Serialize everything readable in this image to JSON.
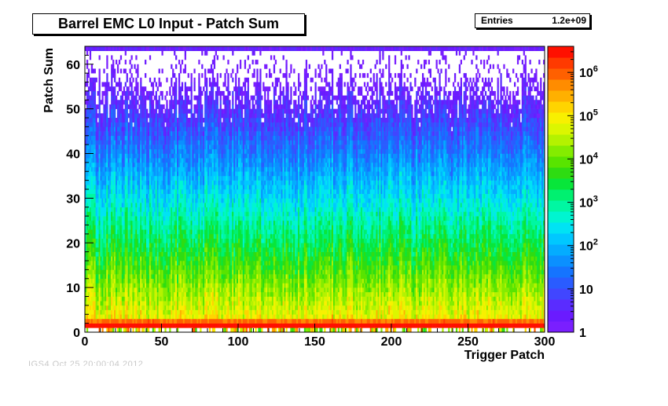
{
  "chart_data": {
    "type": "heatmap",
    "title": "Barrel EMC L0 Input - Patch Sum",
    "xlabel": "Trigger Patch",
    "ylabel": "Patch Sum",
    "xlim": [
      0,
      300
    ],
    "ylim": [
      0,
      64
    ],
    "x_ticks": [
      {
        "value": 0,
        "label": "0"
      },
      {
        "value": 50,
        "label": "50"
      },
      {
        "value": 100,
        "label": "100"
      },
      {
        "value": 150,
        "label": "150"
      },
      {
        "value": 200,
        "label": "200"
      },
      {
        "value": 250,
        "label": "250"
      },
      {
        "value": 300,
        "label": "300"
      }
    ],
    "y_ticks": [
      {
        "value": 0,
        "label": "0"
      },
      {
        "value": 10,
        "label": "10"
      },
      {
        "value": 20,
        "label": "20"
      },
      {
        "value": 30,
        "label": "30"
      },
      {
        "value": 40,
        "label": "40"
      },
      {
        "value": 50,
        "label": "50"
      },
      {
        "value": 60,
        "label": "60"
      }
    ],
    "z_scale": "log",
    "z_range": [
      1,
      4000000
    ],
    "z_ticks": [
      {
        "value": 1,
        "base": "1",
        "exp": ""
      },
      {
        "value": 10,
        "base": "10",
        "exp": ""
      },
      {
        "value": 100,
        "base": "10",
        "exp": "2"
      },
      {
        "value": 1000,
        "base": "10",
        "exp": "3"
      },
      {
        "value": 10000,
        "base": "10",
        "exp": "4"
      },
      {
        "value": 100000,
        "base": "10",
        "exp": "5"
      },
      {
        "value": 1000000,
        "base": "10",
        "exp": "6"
      }
    ],
    "palette": [
      "#7a1fff",
      "#6a1bff",
      "#5a2cff",
      "#4146ff",
      "#2a5cff",
      "#1574ff",
      "#0b90ff",
      "#04acff",
      "#00c8ff",
      "#00e3f4",
      "#00f5d0",
      "#00f7a2",
      "#00f070",
      "#08e63a",
      "#2edc12",
      "#58e400",
      "#84ec00",
      "#b4f200",
      "#dcf600",
      "#f8f000",
      "#ffd400",
      "#ffb000",
      "#ff8c00",
      "#ff6000",
      "#ff3a00",
      "#ff1000"
    ],
    "grid": false
  },
  "stats": {
    "label": "Entries",
    "value": "1.2e+09"
  },
  "footer": "IGS4 Oct 25 20:00:04 2012"
}
